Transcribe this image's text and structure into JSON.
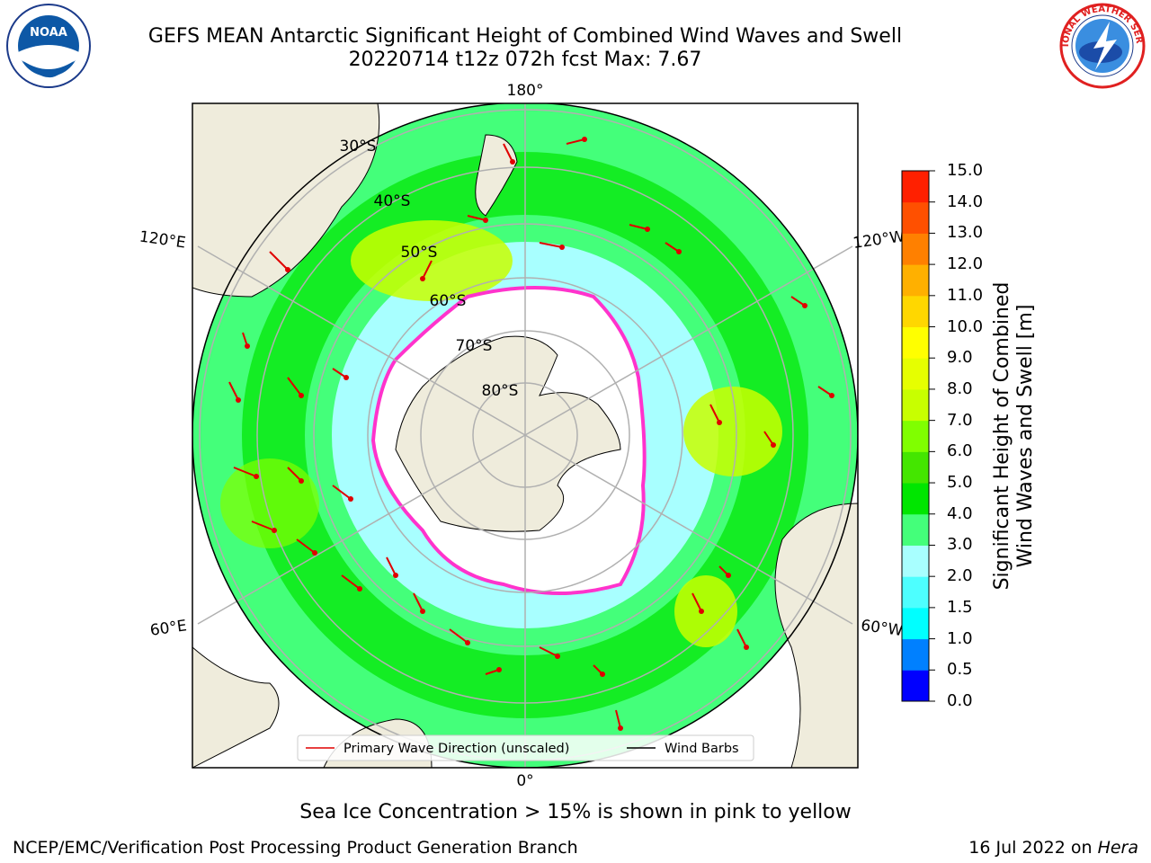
{
  "title_line1": "GEFS MEAN Antarctic Significant Height of Combined Wind Waves and Swell",
  "title_line2": "20220714 t12z 072h fcst   Max: 7.67",
  "map": {
    "longitude_labels": {
      "top": "180°",
      "bottom": "0°",
      "upper_left": "120°E",
      "upper_right": "120°W",
      "lower_left": "60°E",
      "lower_right": "60°W"
    },
    "latitude_labels": [
      "30°S",
      "40°S",
      "50°S",
      "60°S",
      "70°S",
      "80°S"
    ],
    "legend": {
      "wave_direction": "Primary Wave Direction (unscaled)",
      "wind_barbs": "Wind Barbs"
    },
    "colors": {
      "ocean_low": "#a8ffff",
      "ocean_mid": "#44ff7a",
      "ocean_high": "#00e600",
      "ocean_peak": "#c8ff00",
      "land": "#efecdc",
      "ice_edge": "#ff33cc",
      "arrow": "#ff0000"
    }
  },
  "colorbar": {
    "label_line1": "Significant Height of Combined",
    "label_line2": "Wind Waves and Swell [m]",
    "ticks": [
      "0.0",
      "0.5",
      "1.0",
      "1.5",
      "2.0",
      "3.0",
      "4.0",
      "5.0",
      "6.0",
      "7.0",
      "8.0",
      "9.0",
      "10.0",
      "11.0",
      "12.0",
      "13.0",
      "14.0",
      "15.0"
    ],
    "colors": [
      "#0000ff",
      "#0080ff",
      "#00ffff",
      "#4dffff",
      "#a8ffff",
      "#44ff7a",
      "#00e600",
      "#44e600",
      "#80ff00",
      "#c8ff00",
      "#e6ff00",
      "#ffff00",
      "#ffd700",
      "#ffb000",
      "#ff8000",
      "#ff5000",
      "#ff2000",
      "#ff0000"
    ]
  },
  "footer": {
    "subtitle": "Sea Ice Concentration > 15% is shown in pink to yellow",
    "credit": "NCEP/EMC/Verification Post Processing Product Generation Branch",
    "date_prefix": "16 Jul 2022 on ",
    "date_host": "Hera"
  },
  "logos": {
    "left": "NOAA",
    "right": "NATIONAL WEATHER SERVICE"
  }
}
